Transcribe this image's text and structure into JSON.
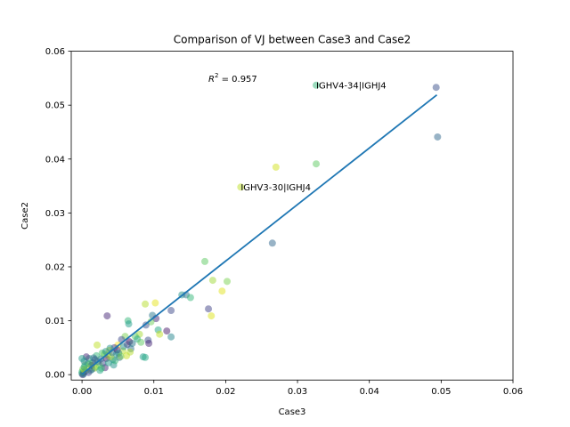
{
  "chart_data": {
    "type": "scatter",
    "title": "Comparison of VJ between Case3 and Case2",
    "xlabel": "Case3",
    "ylabel": "Case2",
    "xlim": [
      -0.0015,
      0.06
    ],
    "ylim": [
      -0.001,
      0.06
    ],
    "xticks": [
      "0.00",
      "0.01",
      "0.02",
      "0.03",
      "0.04",
      "0.05",
      "0.06"
    ],
    "yticks": [
      "0.00",
      "0.01",
      "0.02",
      "0.03",
      "0.04",
      "0.05",
      "0.06"
    ],
    "xtick_values": [
      0,
      0.01,
      0.02,
      0.03,
      0.04,
      0.05,
      0.06
    ],
    "ytick_values": [
      0,
      0.01,
      0.02,
      0.03,
      0.04,
      0.05,
      0.06
    ],
    "grid": false,
    "r2_prefix": "R",
    "r2_sup": "2",
    "r2_value": " = 0.957",
    "fit_line": {
      "x": [
        0,
        0.0494
      ],
      "y": [
        0.0001,
        0.0519
      ],
      "color": "#1f77b4"
    },
    "annotations": [
      {
        "text": "IGHV4-34|IGHJ4",
        "x": 0.0326,
        "y": 0.0537
      },
      {
        "text": "IGHV3-30|IGHJ4",
        "x": 0.0221,
        "y": 0.0348
      }
    ],
    "points": [
      {
        "x": 0.0493,
        "y": 0.0533,
        "color": "#3b528b"
      },
      {
        "x": 0.0495,
        "y": 0.0441,
        "color": "#31688e"
      },
      {
        "x": 0.0326,
        "y": 0.0537,
        "color": "#35b779"
      },
      {
        "x": 0.0326,
        "y": 0.0391,
        "color": "#5ec962"
      },
      {
        "x": 0.027,
        "y": 0.0385,
        "color": "#d2e21b"
      },
      {
        "x": 0.0221,
        "y": 0.0348,
        "color": "#bddf26"
      },
      {
        "x": 0.0265,
        "y": 0.0244,
        "color": "#31688e"
      },
      {
        "x": 0.0171,
        "y": 0.021,
        "color": "#5ec962"
      },
      {
        "x": 0.0182,
        "y": 0.0175,
        "color": "#a0da39"
      },
      {
        "x": 0.0202,
        "y": 0.0173,
        "color": "#7ad151"
      },
      {
        "x": 0.0195,
        "y": 0.0155,
        "color": "#e1e31d"
      },
      {
        "x": 0.0139,
        "y": 0.0148,
        "color": "#21918c"
      },
      {
        "x": 0.0145,
        "y": 0.0148,
        "color": "#2c728e"
      },
      {
        "x": 0.0151,
        "y": 0.0143,
        "color": "#35b779"
      },
      {
        "x": 0.0088,
        "y": 0.0131,
        "color": "#b5de2b"
      },
      {
        "x": 0.0102,
        "y": 0.0133,
        "color": "#e5e419"
      },
      {
        "x": 0.0124,
        "y": 0.0119,
        "color": "#3e4a89"
      },
      {
        "x": 0.0176,
        "y": 0.0122,
        "color": "#414487"
      },
      {
        "x": 0.018,
        "y": 0.0109,
        "color": "#dde318"
      },
      {
        "x": 0.0035,
        "y": 0.0109,
        "color": "#482878"
      },
      {
        "x": 0.0064,
        "y": 0.01,
        "color": "#35b779"
      },
      {
        "x": 0.0065,
        "y": 0.0094,
        "color": "#1f9e89"
      },
      {
        "x": 0.0098,
        "y": 0.011,
        "color": "#2a788e"
      },
      {
        "x": 0.0103,
        "y": 0.0104,
        "color": "#482878"
      },
      {
        "x": 0.0096,
        "y": 0.0098,
        "color": "#6ece58"
      },
      {
        "x": 0.0089,
        "y": 0.0092,
        "color": "#3b528b"
      },
      {
        "x": 0.0106,
        "y": 0.0083,
        "color": "#22a884"
      },
      {
        "x": 0.0118,
        "y": 0.0081,
        "color": "#481a6c"
      },
      {
        "x": 0.0108,
        "y": 0.0075,
        "color": "#c2df23"
      },
      {
        "x": 0.0124,
        "y": 0.007,
        "color": "#25858e"
      },
      {
        "x": 0.008,
        "y": 0.0075,
        "color": "#a5db36"
      },
      {
        "x": 0.0074,
        "y": 0.0071,
        "color": "#5ec962"
      },
      {
        "x": 0.0092,
        "y": 0.0064,
        "color": "#3b528b"
      },
      {
        "x": 0.0093,
        "y": 0.0058,
        "color": "#482878"
      },
      {
        "x": 0.0085,
        "y": 0.0033,
        "color": "#1f9e89"
      },
      {
        "x": 0.0088,
        "y": 0.0032,
        "color": "#22a884"
      },
      {
        "x": 0.0066,
        "y": 0.0061,
        "color": "#440154"
      },
      {
        "x": 0.0068,
        "y": 0.0048,
        "color": "#2c728e"
      },
      {
        "x": 0.006,
        "y": 0.0071,
        "color": "#7ad151"
      },
      {
        "x": 0.0055,
        "y": 0.0065,
        "color": "#3e4a89"
      },
      {
        "x": 0.005,
        "y": 0.0055,
        "color": "#fde725"
      },
      {
        "x": 0.0057,
        "y": 0.0044,
        "color": "#b5de2b"
      },
      {
        "x": 0.0062,
        "y": 0.0035,
        "color": "#c8e020"
      },
      {
        "x": 0.0045,
        "y": 0.005,
        "color": "#46337e"
      },
      {
        "x": 0.0048,
        "y": 0.0038,
        "color": "#1f9e89"
      },
      {
        "x": 0.0052,
        "y": 0.0032,
        "color": "#31688e"
      },
      {
        "x": 0.0043,
        "y": 0.0028,
        "color": "#2a788e"
      },
      {
        "x": 0.0044,
        "y": 0.0018,
        "color": "#21918c"
      },
      {
        "x": 0.0038,
        "y": 0.0045,
        "color": "#e5e419"
      },
      {
        "x": 0.0036,
        "y": 0.0036,
        "color": "#90d743"
      },
      {
        "x": 0.0034,
        "y": 0.003,
        "color": "#471063"
      },
      {
        "x": 0.0032,
        "y": 0.0013,
        "color": "#482878"
      },
      {
        "x": 0.0028,
        "y": 0.004,
        "color": "#4ac16d"
      },
      {
        "x": 0.0026,
        "y": 0.0029,
        "color": "#2c728e"
      },
      {
        "x": 0.0024,
        "y": 0.0018,
        "color": "#6ece58"
      },
      {
        "x": 0.0021,
        "y": 0.0055,
        "color": "#bddf26"
      },
      {
        "x": 0.002,
        "y": 0.0035,
        "color": "#35b779"
      },
      {
        "x": 0.0018,
        "y": 0.0028,
        "color": "#3e4a89"
      },
      {
        "x": 0.0017,
        "y": 0.0012,
        "color": "#a0da39"
      },
      {
        "x": 0.0015,
        "y": 0.0022,
        "color": "#31688e"
      },
      {
        "x": 0.0013,
        "y": 0.0017,
        "color": "#440154"
      },
      {
        "x": 0.0012,
        "y": 0.0008,
        "color": "#21918c"
      },
      {
        "x": 0.001,
        "y": 0.003,
        "color": "#1f9e89"
      },
      {
        "x": 0.0008,
        "y": 0.002,
        "color": "#2a788e"
      },
      {
        "x": 0.0007,
        "y": 0.0012,
        "color": "#fde725"
      },
      {
        "x": 0.0006,
        "y": 0.0033,
        "color": "#482878"
      },
      {
        "x": 0.0005,
        "y": 0.0007,
        "color": "#22a884"
      },
      {
        "x": 0.0004,
        "y": 0.0018,
        "color": "#5ec962"
      },
      {
        "x": 0.0003,
        "y": 0.0025,
        "color": "#26828e"
      },
      {
        "x": 0.0002,
        "y": 0.0004,
        "color": "#3b528b"
      },
      {
        "x": 0.0001,
        "y": 0.001,
        "color": "#7ad151"
      },
      {
        "x": 0.0,
        "y": 0.0002,
        "color": "#21918c"
      },
      {
        "x": 0.0,
        "y": 0.003,
        "color": "#1f9e89"
      },
      {
        "x": 0.0001,
        "y": 0.0,
        "color": "#46337e"
      },
      {
        "x": 0.0,
        "y": 0.0005,
        "color": "#35b779"
      },
      {
        "x": 0.0002,
        "y": 0.0001,
        "color": "#2c728e"
      },
      {
        "x": 0.0003,
        "y": 0.0009,
        "color": "#c2df23"
      },
      {
        "x": 0.0009,
        "y": 0.0004,
        "color": "#414487"
      },
      {
        "x": 0.0011,
        "y": 0.002,
        "color": "#4ac16d"
      },
      {
        "x": 0.0014,
        "y": 0.001,
        "color": "#31688e"
      },
      {
        "x": 0.0019,
        "y": 0.0014,
        "color": "#90d743"
      },
      {
        "x": 0.0022,
        "y": 0.0024,
        "color": "#2a788e"
      },
      {
        "x": 0.0025,
        "y": 0.0008,
        "color": "#22a884"
      },
      {
        "x": 0.0029,
        "y": 0.0021,
        "color": "#3b528b"
      },
      {
        "x": 0.0031,
        "y": 0.0038,
        "color": "#6ece58"
      },
      {
        "x": 0.0033,
        "y": 0.0043,
        "color": "#21918c"
      },
      {
        "x": 0.0037,
        "y": 0.0022,
        "color": "#1f9e89"
      },
      {
        "x": 0.004,
        "y": 0.0033,
        "color": "#a5db36"
      },
      {
        "x": 0.0042,
        "y": 0.0041,
        "color": "#2c728e"
      },
      {
        "x": 0.0046,
        "y": 0.0026,
        "color": "#35b779"
      },
      {
        "x": 0.0049,
        "y": 0.0046,
        "color": "#482878"
      },
      {
        "x": 0.0051,
        "y": 0.004,
        "color": "#25858e"
      },
      {
        "x": 0.0054,
        "y": 0.0034,
        "color": "#7ad151"
      },
      {
        "x": 0.0058,
        "y": 0.0052,
        "color": "#21918c"
      },
      {
        "x": 0.0063,
        "y": 0.0056,
        "color": "#3e4a89"
      },
      {
        "x": 0.0067,
        "y": 0.0042,
        "color": "#b5de2b"
      },
      {
        "x": 0.007,
        "y": 0.0058,
        "color": "#2a788e"
      },
      {
        "x": 0.0077,
        "y": 0.0066,
        "color": "#22a884"
      },
      {
        "x": 0.0082,
        "y": 0.006,
        "color": "#5ec962"
      },
      {
        "x": 0.0003,
        "y": 0.0014,
        "color": "#1f9e89"
      },
      {
        "x": 0.0016,
        "y": 0.0031,
        "color": "#2c728e"
      },
      {
        "x": 0.0027,
        "y": 0.0012,
        "color": "#35b779"
      },
      {
        "x": 0.0039,
        "y": 0.0049,
        "color": "#21918c"
      }
    ]
  }
}
